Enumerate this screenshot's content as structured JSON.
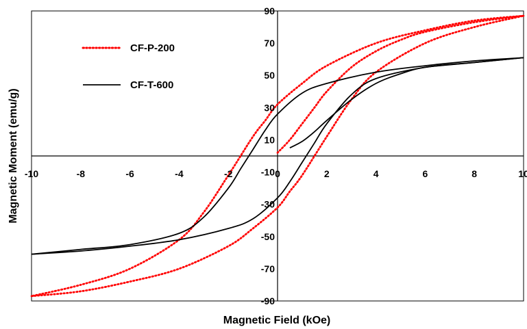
{
  "chart_data": {
    "type": "line",
    "title": "",
    "xlabel": "Magnetic Field (kOe)",
    "ylabel": "Magnetic Moment (emu/g)",
    "xlim": [
      -10,
      10
    ],
    "ylim": [
      -90,
      90
    ],
    "x_ticks": [
      -10,
      -8,
      -6,
      -4,
      -2,
      0,
      2,
      4,
      6,
      8,
      10
    ],
    "y_ticks": [
      -90,
      -70,
      -50,
      -30,
      -10,
      10,
      30,
      50,
      70,
      90
    ],
    "x_tick_labels": [
      "-10",
      "-8",
      "-6",
      "-4",
      "-2",
      "0",
      "2",
      "4",
      "6",
      "8",
      "10"
    ],
    "y_tick_labels": [
      "-90",
      "-70",
      "-50",
      "-30",
      "-10",
      "10",
      "30",
      "50",
      "70",
      "90"
    ],
    "grid": false,
    "legend_position": "top-left",
    "series": [
      {
        "name": "CF-P-200",
        "color": "#ff0000",
        "style": "dotted",
        "initial_curve": {
          "x": [
            0,
            0.5,
            1,
            1.5,
            2,
            3,
            4,
            5,
            6,
            8,
            10
          ],
          "y": [
            2,
            10,
            20,
            30,
            40,
            55,
            65,
            72,
            77,
            83,
            87
          ]
        },
        "descending_branch": {
          "x": [
            10,
            8,
            6,
            4,
            2,
            1,
            0,
            -0.5,
            -1,
            -2,
            -3,
            -4,
            -6,
            -8,
            -10
          ],
          "y": [
            87,
            84,
            78,
            70,
            56,
            45,
            32,
            22,
            12,
            -12,
            -35,
            -52,
            -70,
            -80,
            -87
          ]
        },
        "ascending_branch": {
          "x": [
            -10,
            -8,
            -6,
            -4,
            -2,
            -1,
            0,
            0.5,
            1,
            2,
            3,
            4,
            6,
            8,
            10
          ],
          "y": [
            -87,
            -84,
            -78,
            -70,
            -56,
            -45,
            -32,
            -22,
            -12,
            12,
            35,
            52,
            70,
            80,
            87
          ]
        }
      },
      {
        "name": "CF-T-600",
        "color": "#000000",
        "style": "solid",
        "initial_curve": {
          "x": [
            0.5,
            1,
            1.5,
            2,
            3,
            4,
            5,
            6,
            8,
            10
          ],
          "y": [
            5,
            9,
            15,
            22,
            35,
            45,
            51,
            55,
            58,
            61
          ]
        },
        "descending_branch": {
          "x": [
            10,
            8,
            6,
            4,
            2,
            1,
            0,
            -0.5,
            -1,
            -1.5,
            -2,
            -3,
            -4,
            -6,
            -8,
            -10
          ],
          "y": [
            61,
            59,
            56,
            52,
            45,
            39,
            26,
            16,
            4,
            -8,
            -20,
            -38,
            -48,
            -55,
            -58,
            -61
          ]
        },
        "ascending_branch": {
          "x": [
            -10,
            -8,
            -6,
            -4,
            -2,
            -1,
            0,
            0.5,
            1,
            1.5,
            2,
            3,
            4,
            6,
            8,
            10
          ],
          "y": [
            -61,
            -59,
            -56,
            -52,
            -45,
            -39,
            -26,
            -16,
            -4,
            8,
            20,
            38,
            48,
            55,
            58,
            61
          ]
        }
      }
    ]
  }
}
